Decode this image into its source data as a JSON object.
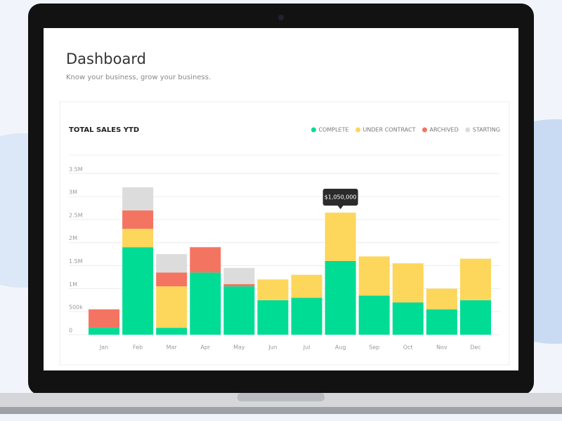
{
  "header": {
    "title": "Dashboard",
    "subtitle": "Know your business, grow your business."
  },
  "chart_data": {
    "type": "stacked-bar",
    "title": "TOTAL SALES YTD",
    "categories": [
      "Jan",
      "Feb",
      "Mar",
      "Apr",
      "May",
      "Jun",
      "Jul",
      "Aug",
      "Sep",
      "Oct",
      "Nov",
      "Dec"
    ],
    "series": [
      {
        "name": "COMPLETE",
        "color": "#00dc94",
        "values": [
          150000,
          1900000,
          150000,
          1350000,
          1050000,
          750000,
          800000,
          1600000,
          850000,
          700000,
          550000,
          750000
        ]
      },
      {
        "name": "UNDER CONTRACT",
        "color": "#fdd65c",
        "values": [
          0,
          400000,
          900000,
          0,
          0,
          450000,
          500000,
          1050000,
          850000,
          850000,
          450000,
          900000
        ],
        "value_labels": [
          null,
          null,
          null,
          null,
          null,
          null,
          null,
          "$1,050,000",
          null,
          null,
          null,
          null
        ]
      },
      {
        "name": "ARCHIVED",
        "color": "#f47462",
        "values": [
          400000,
          400000,
          300000,
          550000,
          50000,
          0,
          0,
          0,
          0,
          0,
          0,
          0
        ]
      },
      {
        "name": "STARTING",
        "color": "#dcdcdc",
        "values": [
          0,
          500000,
          400000,
          0,
          350000,
          0,
          0,
          0,
          0,
          0,
          0,
          0
        ]
      }
    ],
    "ylim": [
      0,
      3900000
    ],
    "yticks": [
      0,
      {
        "value": 500000,
        "label": "500k"
      },
      {
        "value": 1000000,
        "label": "1M"
      },
      {
        "value": 1500000,
        "label": "1.5M"
      },
      {
        "value": 2000000,
        "label": "2M"
      },
      {
        "value": 2500000,
        "label": "2.5M"
      },
      {
        "value": 3000000,
        "label": "3M"
      },
      {
        "value": 3500000,
        "label": "3.5M"
      }
    ],
    "grid": true,
    "legend": "top-right"
  }
}
